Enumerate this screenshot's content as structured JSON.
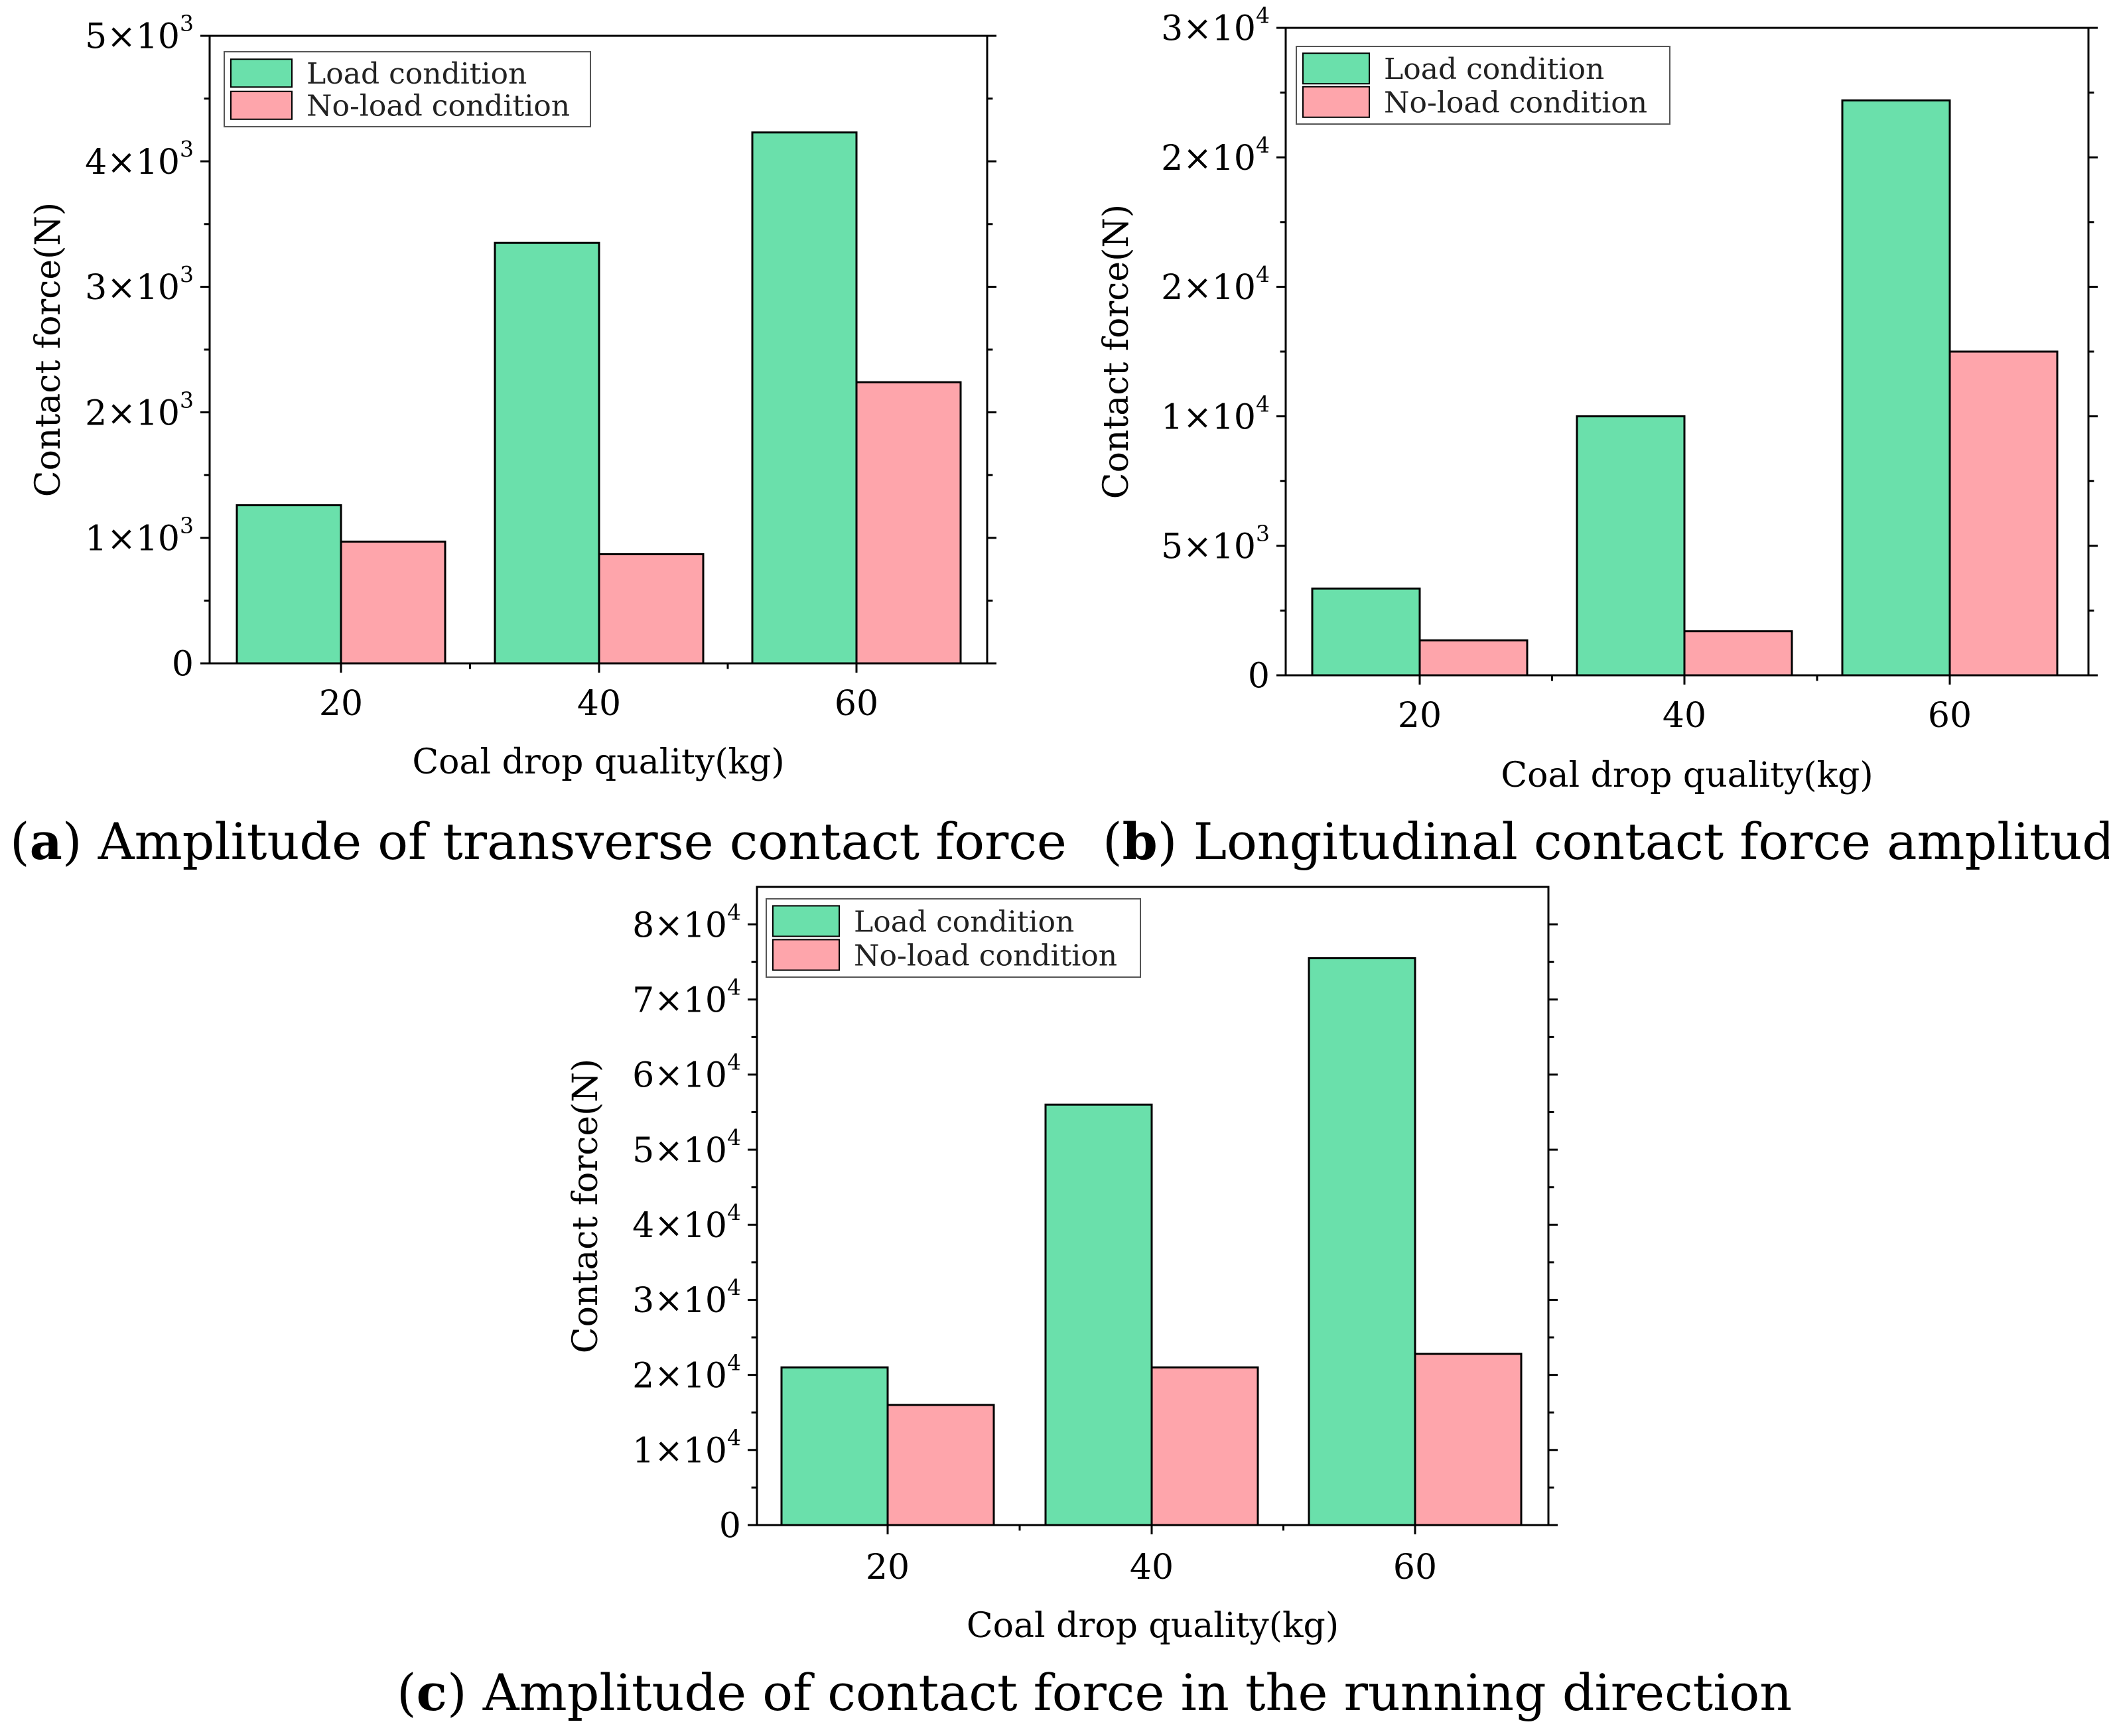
{
  "colors": {
    "load": "#6ae0ab",
    "noload": "#fea5ab",
    "axis": "#000000"
  },
  "chart_data": [
    {
      "type": "bar",
      "caption_letter": "a",
      "caption_text": "Amplitude of transverse contact force",
      "xlabel": "Coal drop quality(kg)",
      "ylabel": "Contact force(N)",
      "categories": [
        "20",
        "40",
        "60"
      ],
      "series": [
        {
          "name": "Load condition",
          "color": "#6ae0ab",
          "values": [
            1260,
            3350,
            4230
          ]
        },
        {
          "name": "No-load condition",
          "color": "#fea5ab",
          "values": [
            970,
            870,
            2240
          ]
        }
      ],
      "ylim": [
        0,
        5000
      ],
      "yticks": [
        {
          "value": 0,
          "mantissa": "0",
          "exp": ""
        },
        {
          "value": 1000,
          "mantissa": "1×10",
          "exp": "3"
        },
        {
          "value": 2000,
          "mantissa": "2×10",
          "exp": "3"
        },
        {
          "value": 3000,
          "mantissa": "3×10",
          "exp": "3"
        },
        {
          "value": 4000,
          "mantissa": "4×10",
          "exp": "3"
        },
        {
          "value": 5000,
          "mantissa": "5×10",
          "exp": "3"
        }
      ],
      "legend": "top-left",
      "grid": false
    },
    {
      "type": "bar",
      "caption_letter": "b",
      "caption_text": "Longitudinal contact force amplitude",
      "xlabel": "Coal drop quality(kg)",
      "ylabel": "Contact force(N)",
      "categories": [
        "20",
        "40",
        "60"
      ],
      "series": [
        {
          "name": "Load condition",
          "color": "#6ae0ab",
          "values": [
            3350,
            10000,
            22200
          ]
        },
        {
          "name": "No-load condition",
          "color": "#fea5ab",
          "values": [
            1350,
            1700,
            12500
          ]
        }
      ],
      "ylim": [
        0,
        25000
      ],
      "yticks": [
        {
          "value": 0,
          "mantissa": "0",
          "exp": ""
        },
        {
          "value": 5000,
          "mantissa": "5×10",
          "exp": "3"
        },
        {
          "value": 10000,
          "mantissa": "1×10",
          "exp": "4"
        },
        {
          "value": 15000,
          "mantissa": "2×10",
          "exp": "4"
        },
        {
          "value": 20000,
          "mantissa": "2×10",
          "exp": "4"
        },
        {
          "value": 25000,
          "mantissa": "3×10",
          "exp": "4"
        }
      ],
      "legend": "top-left",
      "grid": false
    },
    {
      "type": "bar",
      "caption_letter": "c",
      "caption_text": "Amplitude of contact force in the running direction",
      "xlabel": "Coal drop quality(kg)",
      "ylabel": "Contact force(N)",
      "categories": [
        "20",
        "40",
        "60"
      ],
      "series": [
        {
          "name": "Load condition",
          "color": "#6ae0ab",
          "values": [
            21000,
            56000,
            75500
          ]
        },
        {
          "name": "No-load condition",
          "color": "#fea5ab",
          "values": [
            16000,
            21000,
            22800
          ]
        }
      ],
      "ylim": [
        0,
        85000
      ],
      "yticks": [
        {
          "value": 0,
          "mantissa": "0",
          "exp": ""
        },
        {
          "value": 10000,
          "mantissa": "1×10",
          "exp": "4"
        },
        {
          "value": 20000,
          "mantissa": "2×10",
          "exp": "4"
        },
        {
          "value": 30000,
          "mantissa": "3×10",
          "exp": "4"
        },
        {
          "value": 40000,
          "mantissa": "4×10",
          "exp": "4"
        },
        {
          "value": 50000,
          "mantissa": "5×10",
          "exp": "4"
        },
        {
          "value": 60000,
          "mantissa": "6×10",
          "exp": "4"
        },
        {
          "value": 70000,
          "mantissa": "7×10",
          "exp": "4"
        },
        {
          "value": 80000,
          "mantissa": "8×10",
          "exp": "4"
        }
      ],
      "legend": "top-left",
      "grid": false
    }
  ]
}
